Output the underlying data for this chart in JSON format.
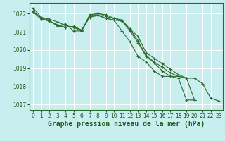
{
  "background_color": "#c8eef0",
  "grid_color": "#ffffff",
  "line_color": "#2d6a2d",
  "xlabel": "Graphe pression niveau de la mer (hPa)",
  "xlabel_color": "#1a5c1a",
  "xlabel_fontsize": 7,
  "tick_color": "#1a5c1a",
  "tick_fontsize": 5.5,
  "ylim": [
    1016.7,
    1022.6
  ],
  "xlim": [
    -0.5,
    23.5
  ],
  "yticks": [
    1017,
    1018,
    1019,
    1020,
    1021,
    1022
  ],
  "xticks": [
    0,
    1,
    2,
    3,
    4,
    5,
    6,
    7,
    8,
    9,
    10,
    11,
    12,
    13,
    14,
    15,
    16,
    17,
    18,
    19,
    20,
    21,
    22,
    23
  ],
  "series": [
    [
      1022.3,
      1021.8,
      1021.7,
      1021.55,
      1021.35,
      1021.25,
      1021.05,
      1021.85,
      1022.05,
      1021.85,
      1021.75,
      1021.65,
      1021.15,
      1020.5,
      1019.7,
      1019.35,
      1019.05,
      1018.75,
      1018.55,
      null,
      null,
      null,
      null,
      null
    ],
    [
      1022.15,
      1021.75,
      1021.65,
      1021.3,
      1021.45,
      1021.05,
      1021.05,
      1021.95,
      1022.0,
      1021.95,
      1021.75,
      1021.65,
      1021.15,
      1020.75,
      1019.85,
      1019.55,
      1019.25,
      1018.95,
      1018.65,
      1018.45,
      1018.45,
      1018.15,
      1017.35,
      1017.2
    ],
    [
      1022.1,
      1021.7,
      1021.6,
      1021.35,
      1021.25,
      1021.3,
      1021.1,
      1021.85,
      1021.95,
      1021.75,
      1021.65,
      1021.05,
      1020.45,
      1019.65,
      1019.35,
      1018.85,
      1018.55,
      1018.55,
      1018.45,
      1017.25,
      1017.25,
      null,
      null,
      null
    ],
    [
      1022.1,
      1021.7,
      1021.6,
      1021.4,
      1021.25,
      1021.3,
      1021.1,
      1021.8,
      1021.9,
      1021.75,
      1021.65,
      1021.6,
      1021.05,
      1020.4,
      1019.65,
      1019.3,
      1018.85,
      1018.55,
      1018.55,
      1018.45,
      1017.25,
      null,
      null,
      null
    ]
  ]
}
